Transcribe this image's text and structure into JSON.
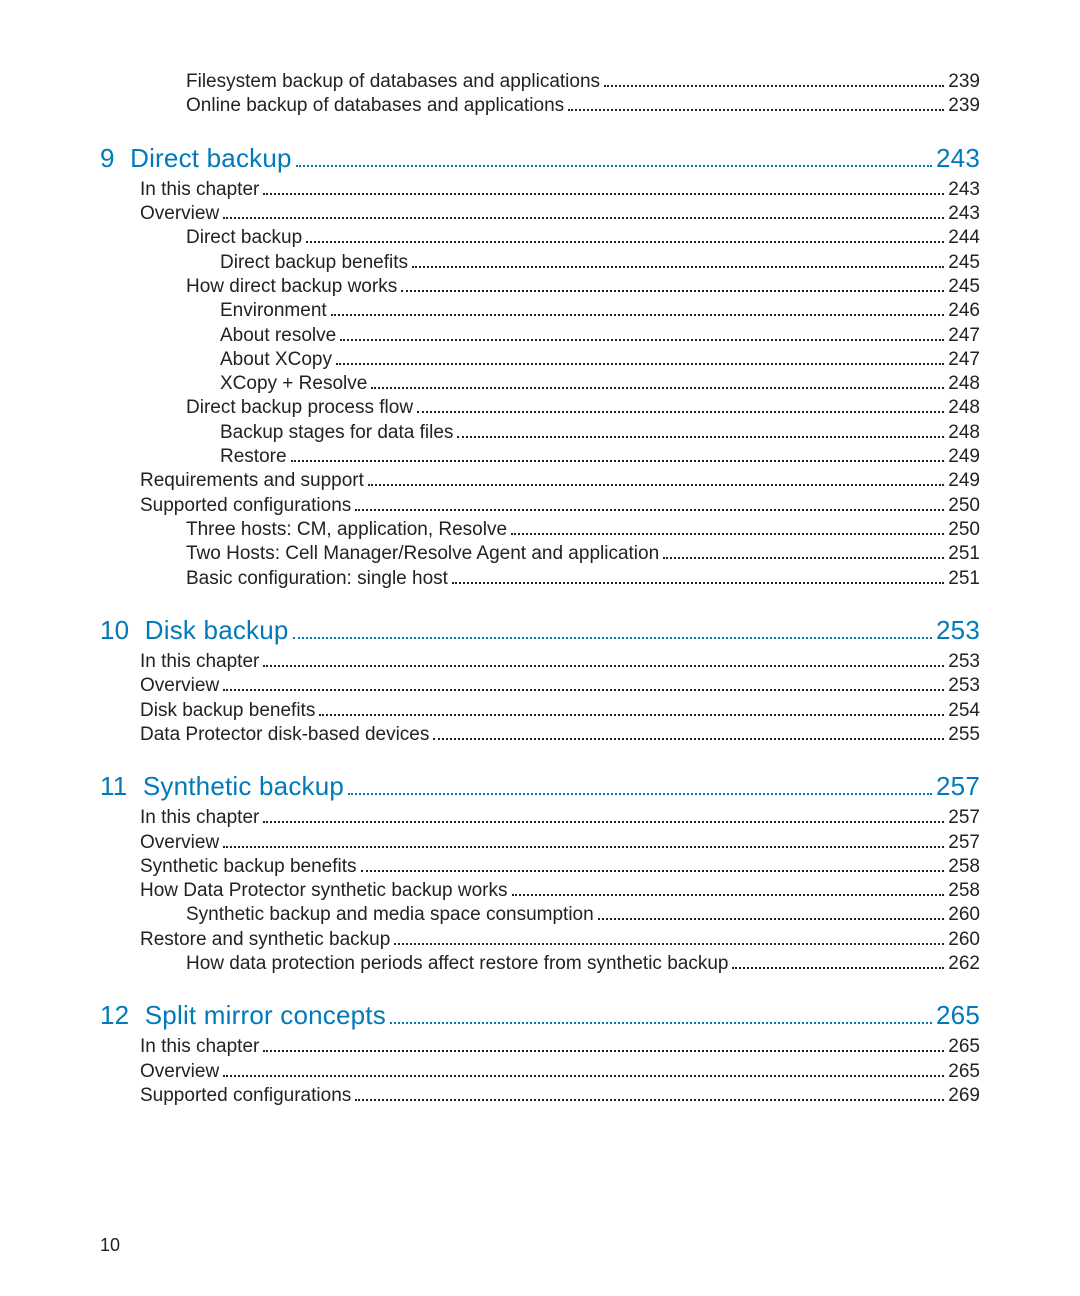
{
  "colors": {
    "accent": "#007ab8",
    "text": "#222222",
    "background": "#ffffff",
    "leader_dot": "#222222"
  },
  "typography": {
    "body_fontsize": 19,
    "chapter_fontsize": 26,
    "weight": 300,
    "family": "Arial"
  },
  "pre_entries": [
    {
      "label": "Filesystem backup of databases and applications",
      "page": "239",
      "indent": 2
    },
    {
      "label": "Online backup of databases and applications",
      "page": "239",
      "indent": 2
    }
  ],
  "chapters": [
    {
      "number": "9",
      "title": "Direct backup",
      "page": "243",
      "entries": [
        {
          "label": "In this chapter",
          "page": "243",
          "indent": 1
        },
        {
          "label": "Overview",
          "page": "243",
          "indent": 1
        },
        {
          "label": "Direct backup",
          "page": "244",
          "indent": 2
        },
        {
          "label": "Direct backup benefits",
          "page": "245",
          "indent": 3
        },
        {
          "label": "How direct backup works",
          "page": "245",
          "indent": 2
        },
        {
          "label": "Environment",
          "page": "246",
          "indent": 3
        },
        {
          "label": "About resolve",
          "page": "247",
          "indent": 3
        },
        {
          "label": "About XCopy",
          "page": "247",
          "indent": 3
        },
        {
          "label": "XCopy + Resolve",
          "page": "248",
          "indent": 3
        },
        {
          "label": "Direct backup process flow",
          "page": "248",
          "indent": 2
        },
        {
          "label": "Backup stages for data files",
          "page": "248",
          "indent": 3
        },
        {
          "label": "Restore",
          "page": "249",
          "indent": 3
        },
        {
          "label": "Requirements and support",
          "page": "249",
          "indent": 1
        },
        {
          "label": "Supported configurations",
          "page": "250",
          "indent": 1
        },
        {
          "label": "Three hosts: CM, application, Resolve",
          "page": "250",
          "indent": 2
        },
        {
          "label": "Two Hosts: Cell Manager/Resolve Agent and application",
          "page": "251",
          "indent": 2
        },
        {
          "label": "Basic configuration: single host",
          "page": "251",
          "indent": 2
        }
      ]
    },
    {
      "number": "10",
      "title": "Disk backup",
      "page": "253",
      "entries": [
        {
          "label": "In this chapter",
          "page": "253",
          "indent": 1
        },
        {
          "label": "Overview",
          "page": "253",
          "indent": 1
        },
        {
          "label": "Disk backup benefits",
          "page": "254",
          "indent": 1
        },
        {
          "label": "Data Protector disk-based devices",
          "page": "255",
          "indent": 1
        }
      ]
    },
    {
      "number": "11",
      "title": "Synthetic backup",
      "page": "257",
      "entries": [
        {
          "label": "In this chapter",
          "page": "257",
          "indent": 1
        },
        {
          "label": "Overview",
          "page": "257",
          "indent": 1
        },
        {
          "label": "Synthetic backup benefits",
          "page": "258",
          "indent": 1
        },
        {
          "label": "How Data Protector synthetic backup works",
          "page": "258",
          "indent": 1
        },
        {
          "label": "Synthetic backup and media space consumption",
          "page": "260",
          "indent": 2
        },
        {
          "label": "Restore and synthetic backup",
          "page": "260",
          "indent": 1
        },
        {
          "label": "How data protection periods affect restore from synthetic backup",
          "page": "262",
          "indent": 2
        }
      ]
    },
    {
      "number": "12",
      "title": "Split mirror concepts",
      "page": "265",
      "entries": [
        {
          "label": "In this chapter",
          "page": "265",
          "indent": 1
        },
        {
          "label": "Overview",
          "page": "265",
          "indent": 1
        },
        {
          "label": "Supported configurations",
          "page": "269",
          "indent": 1
        }
      ]
    }
  ],
  "pageNumber": "10"
}
